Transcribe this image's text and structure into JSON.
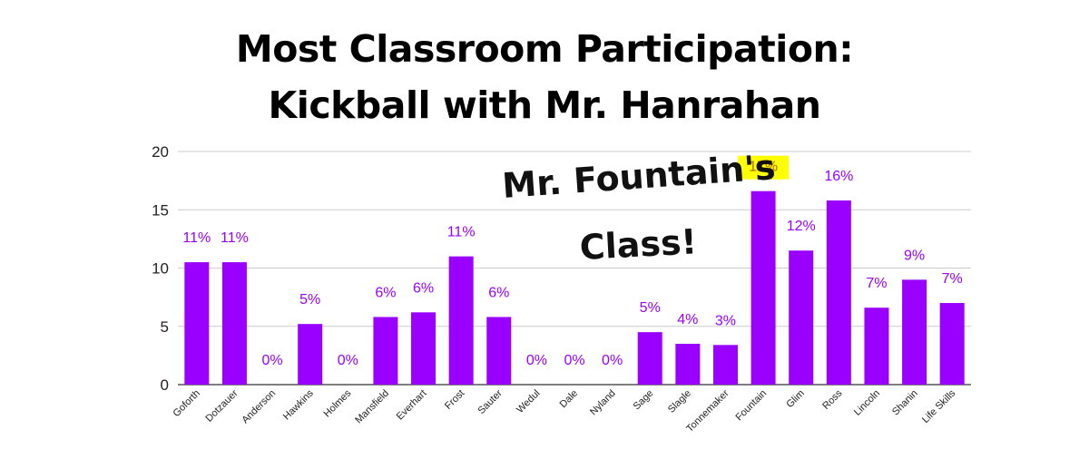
{
  "title": {
    "line1": "Most Classroom Participation:",
    "line2": "Kickball with Mr. Hanrahan"
  },
  "annotation": {
    "line1": "Mr. Fountain's",
    "line2": "Class!"
  },
  "colors": {
    "bar": "#9900ff",
    "label": "#9900ff",
    "highlight": "#ffff00",
    "highlight_text": "#b45f06",
    "grid": "#cccccc",
    "axis": "#333333"
  },
  "chart_data": {
    "type": "bar",
    "title": "Most Classroom Participation: Kickball with Mr. Hanrahan",
    "xlabel": "",
    "ylabel": "",
    "ylim": [
      0,
      20
    ],
    "yticks": [
      0,
      5,
      10,
      15,
      20
    ],
    "grid": true,
    "highlight_category": "Fountain",
    "categories": [
      "Goforth",
      "Dotzauer",
      "Anderson",
      "Hawkins",
      "Holmes",
      "Mansfield",
      "Everhart",
      "Frost",
      "Sauter",
      "Wedul",
      "Dale",
      "Nyland",
      "Sage",
      "Slagle",
      "Tonnemaker",
      "Fountain",
      "Glim",
      "Ross",
      "Lincoln",
      "Shanin",
      "Life Skills"
    ],
    "values": [
      10.5,
      10.5,
      0,
      5.2,
      0,
      5.8,
      6.2,
      11.0,
      5.8,
      0,
      0,
      0,
      4.5,
      3.5,
      3.4,
      16.6,
      11.5,
      15.8,
      6.6,
      9.0,
      7.0
    ],
    "data_labels": [
      "11%",
      "11%",
      "0%",
      "5%",
      "0%",
      "6%",
      "6%",
      "11%",
      "6%",
      "0%",
      "0%",
      "0%",
      "5%",
      "4%",
      "3%",
      "17%",
      "12%",
      "16%",
      "7%",
      "9%",
      "7%"
    ]
  }
}
